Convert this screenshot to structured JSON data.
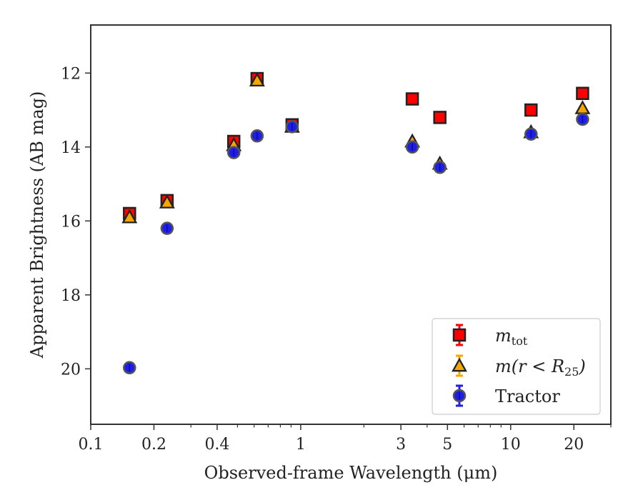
{
  "chart_data": {
    "type": "scatter",
    "xlabel": "Observed-frame Wavelength (μm)",
    "ylabel": "Apparent Brightness (AB mag)",
    "xscale": "log",
    "xlim": [
      0.1,
      30
    ],
    "ylim": [
      21.5,
      10.7
    ],
    "y_inverted": true,
    "grid": false,
    "legend_placement": "lower-right",
    "x_ticks": [
      {
        "value": 0.1,
        "label": "0.1"
      },
      {
        "value": 0.2,
        "label": "0.2"
      },
      {
        "value": 0.4,
        "label": "0.4"
      },
      {
        "value": 1,
        "label": "1"
      },
      {
        "value": 3,
        "label": "3"
      },
      {
        "value": 5,
        "label": "5"
      },
      {
        "value": 10,
        "label": "10"
      },
      {
        "value": 20,
        "label": "20"
      }
    ],
    "x_minor_ticks": [
      0.3,
      0.5,
      0.6,
      0.7,
      0.8,
      0.9,
      2,
      4,
      6,
      7,
      8,
      9,
      30
    ],
    "y_ticks": [
      {
        "value": 12,
        "label": "12"
      },
      {
        "value": 14,
        "label": "14"
      },
      {
        "value": 16,
        "label": "16"
      },
      {
        "value": 18,
        "label": "18"
      },
      {
        "value": 20,
        "label": "20"
      }
    ],
    "series": [
      {
        "name": "m_tot",
        "legend_main": "m",
        "legend_sub": "tot",
        "marker": "square",
        "color": "#ff0000",
        "points": [
          {
            "x": 0.153,
            "y": 15.8
          },
          {
            "x": 0.231,
            "y": 15.45
          },
          {
            "x": 0.48,
            "y": 13.85
          },
          {
            "x": 0.62,
            "y": 12.15
          },
          {
            "x": 0.91,
            "y": 13.4
          },
          {
            "x": 3.4,
            "y": 12.7
          },
          {
            "x": 4.6,
            "y": 13.2
          },
          {
            "x": 12.5,
            "y": 13.0
          },
          {
            "x": 22.0,
            "y": 12.55
          }
        ]
      },
      {
        "name": "m(r < R_25)",
        "legend_main": "m(r < R",
        "legend_sub": "25",
        "legend_end": ")",
        "marker": "triangle",
        "color": "#f5a700",
        "points": [
          {
            "x": 0.153,
            "y": 15.9
          },
          {
            "x": 0.231,
            "y": 15.5
          },
          {
            "x": 0.48,
            "y": 13.95
          },
          {
            "x": 0.62,
            "y": 12.2
          },
          {
            "x": 0.91,
            "y": 13.45
          },
          {
            "x": 3.4,
            "y": 13.85
          },
          {
            "x": 4.6,
            "y": 14.45
          },
          {
            "x": 12.5,
            "y": 13.6
          },
          {
            "x": 22.0,
            "y": 12.95
          }
        ]
      },
      {
        "name": "Tractor",
        "marker": "circle",
        "color": "#1e1ee6",
        "points": [
          {
            "x": 0.153,
            "y": 19.97
          },
          {
            "x": 0.231,
            "y": 16.2
          },
          {
            "x": 0.48,
            "y": 14.15
          },
          {
            "x": 0.62,
            "y": 13.7
          },
          {
            "x": 0.91,
            "y": 13.45
          },
          {
            "x": 3.4,
            "y": 14.0
          },
          {
            "x": 4.6,
            "y": 14.55
          },
          {
            "x": 12.5,
            "y": 13.65
          },
          {
            "x": 22.0,
            "y": 13.25
          }
        ]
      }
    ]
  }
}
